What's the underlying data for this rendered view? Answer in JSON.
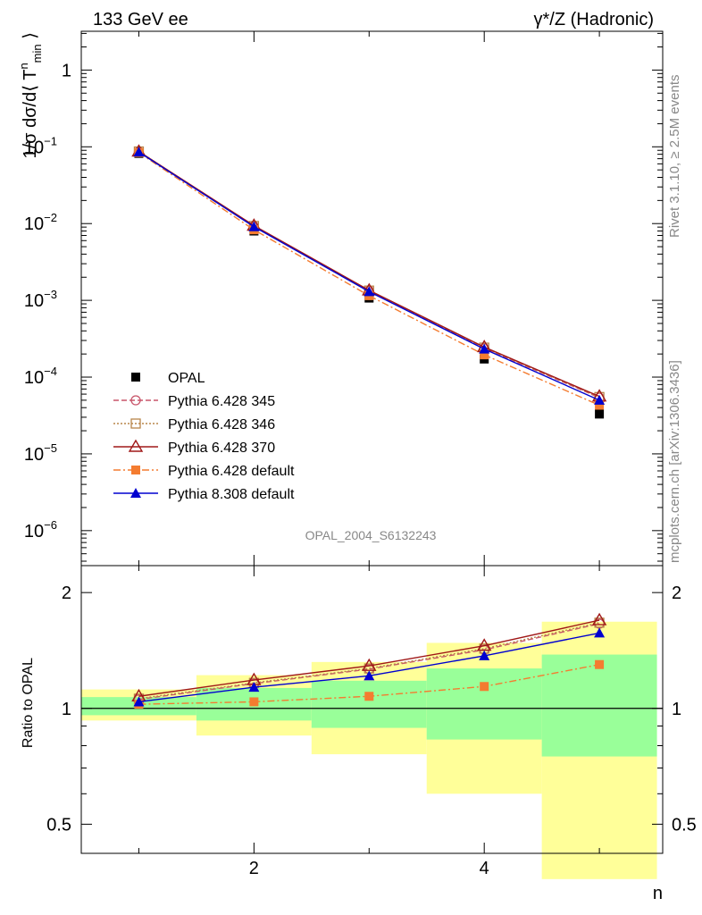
{
  "header": {
    "left_label": "133 GeV ee",
    "right_label": "γ*/Z (Hadronic)"
  },
  "side_text": {
    "rivet": "Rivet 3.1.10, ≥ 2.5M events",
    "mcplots": "mcplots.cern.ch [arXiv:1306.3436]"
  },
  "watermark": "OPAL_2004_S6132243",
  "chart_data": [
    {
      "type": "line",
      "panel": "main",
      "yscale": "log",
      "ylim": [
        3.5e-07,
        3.2
      ],
      "xlim": [
        0.5,
        5.55
      ],
      "ylabel": "1/σ dσ/d⟨ T^n_min ⟩",
      "ytick_labels": [
        "10^-6",
        "10^-5",
        "10^-4",
        "10^-3",
        "10^-2",
        "10^-1",
        "1"
      ],
      "legend_placement": "lower-left",
      "x": [
        1,
        2,
        3,
        4,
        5
      ],
      "series": [
        {
          "name": "OPAL",
          "values": [
            0.082,
            0.008,
            0.00107,
            0.000172,
            3.3e-05
          ],
          "color": "#000000",
          "marker": "square",
          "line": "none"
        },
        {
          "name": "Pythia 6.428 345",
          "values": [
            0.0865,
            0.0092,
            0.00133,
            0.000238,
            5.4e-05
          ],
          "color": "#c8556a",
          "marker": "open-circle",
          "line": "dashed"
        },
        {
          "name": "Pythia 6.428 346",
          "values": [
            0.087,
            0.0093,
            0.00134,
            0.000242,
            5.5e-05
          ],
          "color": "#b8864a",
          "marker": "open-square",
          "line": "dotted"
        },
        {
          "name": "Pythia 6.428 370",
          "values": [
            0.0868,
            0.0094,
            0.00135,
            0.000246,
            5.6e-05
          ],
          "color": "#a01818",
          "marker": "open-triangle",
          "line": "solid"
        },
        {
          "name": "Pythia 6.428 default",
          "values": [
            0.084,
            0.0083,
            0.00115,
            0.000195,
            4.3e-05
          ],
          "color": "#f47c30",
          "marker": "square",
          "line": "dashdot"
        },
        {
          "name": "Pythia 8.308 default",
          "values": [
            0.0855,
            0.0091,
            0.0013,
            0.000232,
            5e-05
          ],
          "color": "#0000d0",
          "marker": "triangle",
          "line": "solid"
        }
      ]
    },
    {
      "type": "line",
      "panel": "ratio",
      "yscale": "log",
      "ylim": [
        0.42,
        2.35
      ],
      "xlim": [
        0.5,
        5.55
      ],
      "xlabel": "n",
      "ylabel": "Ratio to OPAL",
      "ytick_labels": [
        "0.5",
        "1",
        "2"
      ],
      "xtick_labels": [
        "2",
        "4"
      ],
      "bands": [
        {
          "x0": 0.5,
          "x1": 1.5,
          "yellow": [
            0.93,
            1.12
          ],
          "green": [
            0.96,
            1.07
          ]
        },
        {
          "x0": 1.5,
          "x1": 2.5,
          "yellow": [
            0.85,
            1.22
          ],
          "green": [
            0.93,
            1.13
          ]
        },
        {
          "x0": 2.5,
          "x1": 3.5,
          "yellow": [
            0.76,
            1.32
          ],
          "green": [
            0.89,
            1.18
          ]
        },
        {
          "x0": 3.5,
          "x1": 4.5,
          "yellow": [
            0.6,
            1.48
          ],
          "green": [
            0.83,
            1.27
          ]
        },
        {
          "x0": 4.5,
          "x1": 5.5,
          "yellow": [
            0.36,
            1.68
          ],
          "green": [
            0.75,
            1.38
          ]
        }
      ],
      "x": [
        1,
        2,
        3,
        4,
        5
      ],
      "series": [
        {
          "name": "Pythia 6.428 345",
          "values": [
            1.055,
            1.16,
            1.265,
            1.42,
            1.66
          ],
          "color": "#c8556a",
          "marker": "open-circle",
          "line": "dashed"
        },
        {
          "name": "Pythia 6.428 346",
          "values": [
            1.06,
            1.165,
            1.27,
            1.43,
            1.67
          ],
          "color": "#b8864a",
          "marker": "open-square",
          "line": "dotted"
        },
        {
          "name": "Pythia 6.428 370",
          "values": [
            1.075,
            1.185,
            1.29,
            1.455,
            1.695
          ],
          "color": "#a01818",
          "marker": "open-triangle",
          "line": "solid"
        },
        {
          "name": "Pythia 6.428 default",
          "values": [
            1.025,
            1.04,
            1.075,
            1.14,
            1.3
          ],
          "color": "#f47c30",
          "marker": "square",
          "line": "dashdot"
        },
        {
          "name": "Pythia 8.308 default",
          "values": [
            1.04,
            1.135,
            1.215,
            1.37,
            1.57
          ],
          "color": "#0000d0",
          "marker": "triangle",
          "line": "solid"
        }
      ]
    }
  ]
}
